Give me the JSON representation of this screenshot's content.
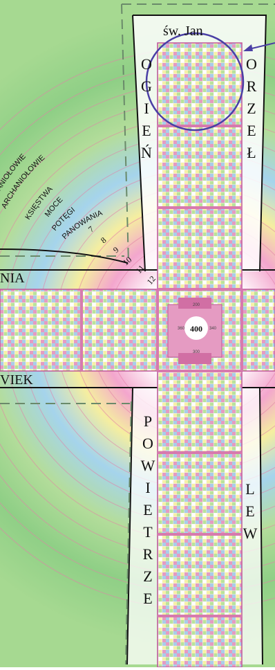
{
  "colors": {
    "pink": "#e59bc2",
    "pink_dark": "#d16fa4",
    "green": "#b9e29b",
    "blue": "#a9cdea",
    "yellow": "#f6f0a6",
    "bg_green": "#b7de9a",
    "bg_yellow": "#f4f09b",
    "bg_blue": "#9fd0ea",
    "bg_pink": "#ee9ac4",
    "circle": "#4a3fa5"
  },
  "top": {
    "title": "św. Jan",
    "left_word": [
      "O",
      "G",
      "I",
      "E",
      "Ń"
    ],
    "right_word": [
      "O",
      "R",
      "Z",
      "E",
      "Ł"
    ]
  },
  "bottom": {
    "left_word": [
      "P",
      "O",
      "W",
      "I",
      "E",
      "T",
      "R",
      "Z",
      "E"
    ],
    "right_word": [
      "L",
      "E",
      "W"
    ]
  },
  "arm_left": {
    "top_label": "NIA",
    "bottom_label": "VIEK"
  },
  "center_value": "400",
  "center_small": [
    "200",
    "360",
    "340",
    "300"
  ],
  "choirs": [
    "ANIOŁOWIE",
    "ARCHANIOŁOWIE",
    "KSIĘSTWA",
    "MOCE",
    "POTĘGI",
    "PANOWANIA"
  ],
  "ring_numbers": [
    "7",
    "8",
    "9",
    "10",
    "11",
    "12"
  ]
}
